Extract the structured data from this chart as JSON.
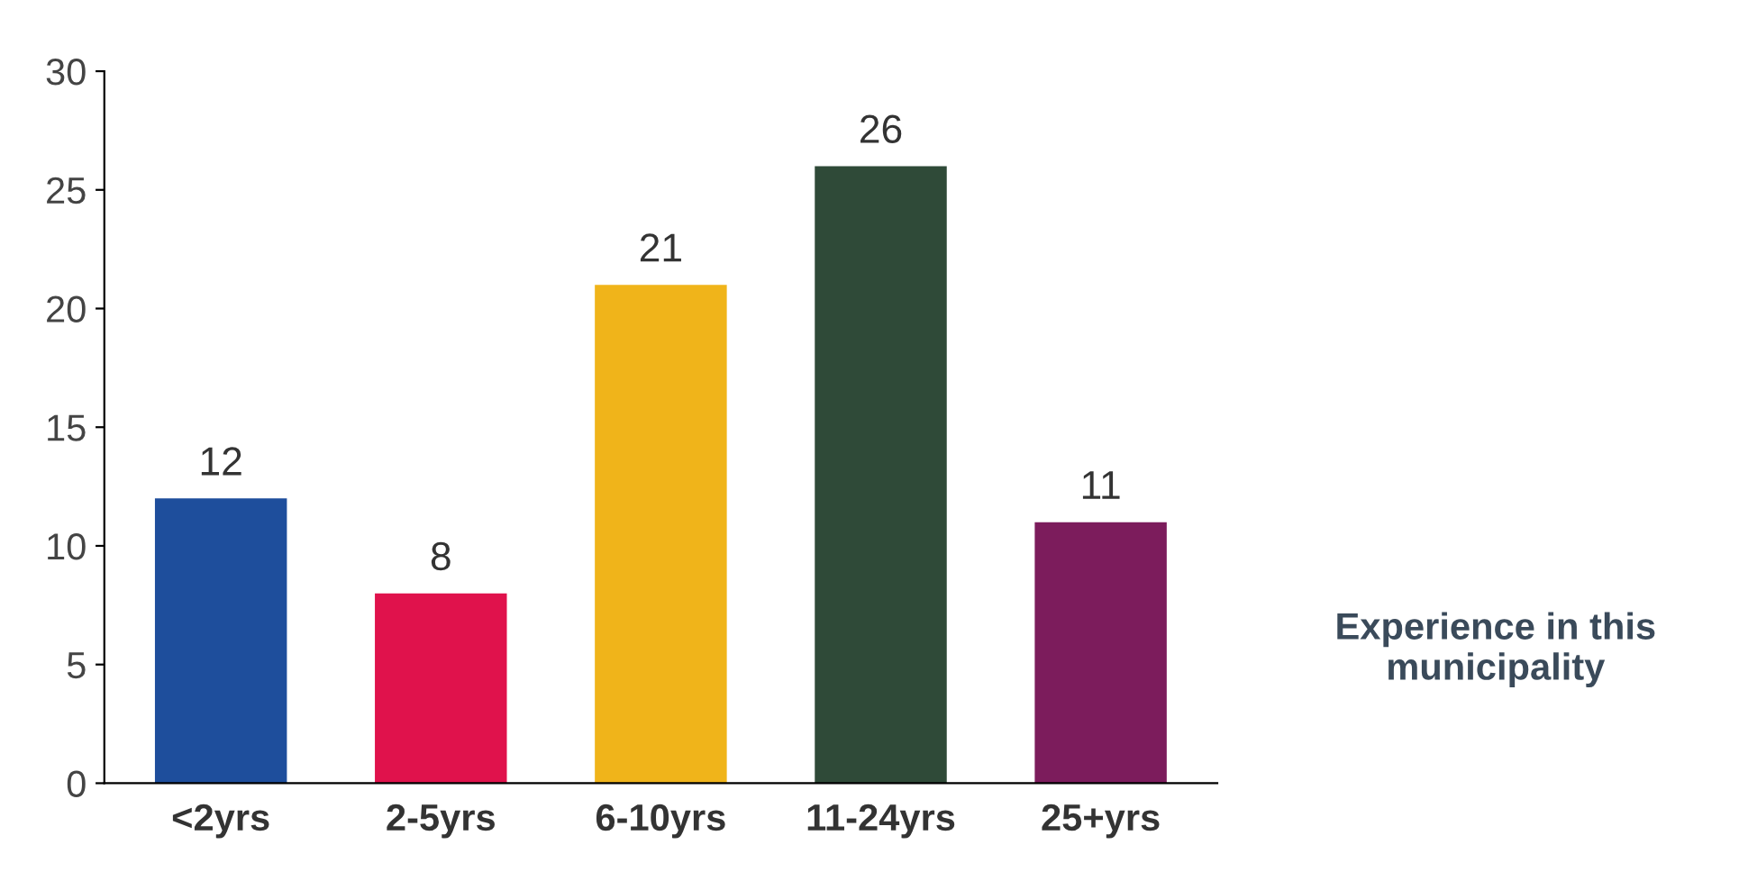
{
  "chart_data": {
    "type": "bar",
    "categories": [
      "<2yrs",
      "2-5yrs",
      "6-10yrs",
      "11-24yrs",
      "25+yrs"
    ],
    "values": [
      12,
      8,
      21,
      26,
      11
    ],
    "colors": [
      "#1e4e9c",
      "#e0124c",
      "#f0b41a",
      "#2f4a38",
      "#7c1c5c"
    ],
    "data_labels": true,
    "ylim": [
      0,
      30
    ],
    "yticks": [
      0,
      5,
      10,
      15,
      20,
      25,
      30
    ],
    "grid": false,
    "legend": false,
    "annotations": [
      "Experience in this\nmunicipality"
    ]
  }
}
